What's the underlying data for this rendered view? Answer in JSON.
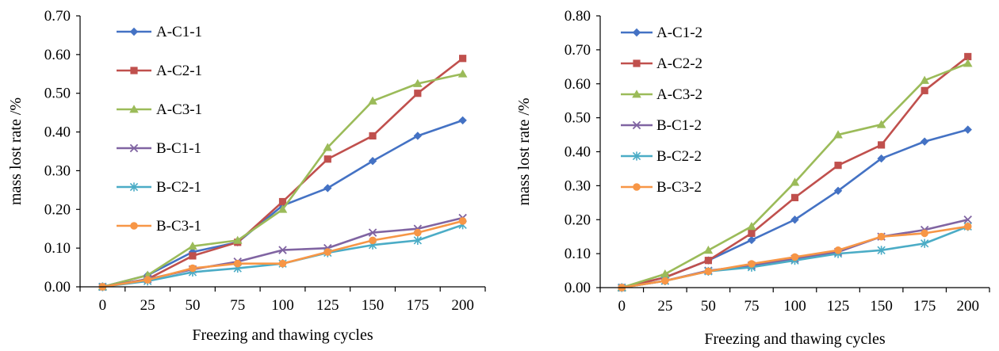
{
  "chart_data": [
    {
      "type": "line",
      "title": "",
      "xlabel": "Freezing and thawing cycles",
      "ylabel": "mass lost rate /%",
      "x": [
        0,
        25,
        50,
        75,
        100,
        125,
        150,
        175,
        200
      ],
      "x_tick_labels": [
        "0",
        "25",
        "50",
        "75",
        "100",
        "125",
        "150",
        "175",
        "200"
      ],
      "ylim": [
        0,
        0.7
      ],
      "y_tick_labels": [
        "0.00",
        "0.10",
        "0.20",
        "0.30",
        "0.40",
        "0.50",
        "0.60",
        "0.70"
      ],
      "grid": false,
      "legend_position": "top-left",
      "series": [
        {
          "name": "A-C1-1",
          "color": "#4472c4",
          "marker": "diamond",
          "values": [
            0,
            0.03,
            0.09,
            0.115,
            0.21,
            0.255,
            0.325,
            0.39,
            0.43
          ]
        },
        {
          "name": "A-C2-1",
          "color": "#c0504d",
          "marker": "square",
          "values": [
            0,
            0.02,
            0.08,
            0.115,
            0.22,
            0.33,
            0.39,
            0.5,
            0.59
          ]
        },
        {
          "name": "A-C3-1",
          "color": "#9bbb59",
          "marker": "triangle",
          "values": [
            0,
            0.03,
            0.105,
            0.12,
            0.2,
            0.36,
            0.48,
            0.525,
            0.55
          ]
        },
        {
          "name": "B-C1-1",
          "color": "#8064a2",
          "marker": "x",
          "values": [
            0,
            0.02,
            0.045,
            0.065,
            0.095,
            0.1,
            0.14,
            0.15,
            0.178
          ]
        },
        {
          "name": "B-C2-1",
          "color": "#4bacc6",
          "marker": "star",
          "values": [
            0,
            0.015,
            0.038,
            0.048,
            0.06,
            0.088,
            0.108,
            0.12,
            0.16
          ]
        },
        {
          "name": "B-C3-1",
          "color": "#f79646",
          "marker": "circle",
          "values": [
            0,
            0.018,
            0.048,
            0.06,
            0.06,
            0.09,
            0.12,
            0.14,
            0.17
          ]
        }
      ]
    },
    {
      "type": "line",
      "title": "",
      "xlabel": "Freezing and thawing cycles",
      "ylabel": "mass lost rate /%",
      "x": [
        0,
        25,
        50,
        75,
        100,
        125,
        150,
        175,
        200
      ],
      "x_tick_labels": [
        "0",
        "25",
        "50",
        "75",
        "100",
        "125",
        "150",
        "175",
        "200"
      ],
      "ylim": [
        0,
        0.8
      ],
      "y_tick_labels": [
        "0.00",
        "0.10",
        "0.20",
        "0.30",
        "0.40",
        "0.50",
        "0.60",
        "0.70",
        "0.80"
      ],
      "grid": false,
      "legend_position": "top-left",
      "series": [
        {
          "name": "A-C1-2",
          "color": "#4472c4",
          "marker": "diamond",
          "values": [
            0,
            0.03,
            0.08,
            0.14,
            0.2,
            0.285,
            0.38,
            0.43,
            0.465
          ]
        },
        {
          "name": "A-C2-2",
          "color": "#c0504d",
          "marker": "square",
          "values": [
            0,
            0.03,
            0.08,
            0.16,
            0.265,
            0.36,
            0.42,
            0.58,
            0.68
          ]
        },
        {
          "name": "A-C3-2",
          "color": "#9bbb59",
          "marker": "triangle",
          "values": [
            0,
            0.04,
            0.11,
            0.18,
            0.31,
            0.45,
            0.48,
            0.61,
            0.66
          ]
        },
        {
          "name": "B-C1-2",
          "color": "#8064a2",
          "marker": "x",
          "values": [
            0,
            0.02,
            0.05,
            0.065,
            0.085,
            0.105,
            0.15,
            0.17,
            0.2
          ]
        },
        {
          "name": "B-C2-2",
          "color": "#4bacc6",
          "marker": "star",
          "values": [
            0,
            0.02,
            0.048,
            0.06,
            0.08,
            0.1,
            0.11,
            0.13,
            0.18
          ]
        },
        {
          "name": "B-C3-2",
          "color": "#f79646",
          "marker": "circle",
          "values": [
            0,
            0.02,
            0.048,
            0.07,
            0.09,
            0.11,
            0.15,
            0.16,
            0.18
          ]
        }
      ]
    }
  ]
}
